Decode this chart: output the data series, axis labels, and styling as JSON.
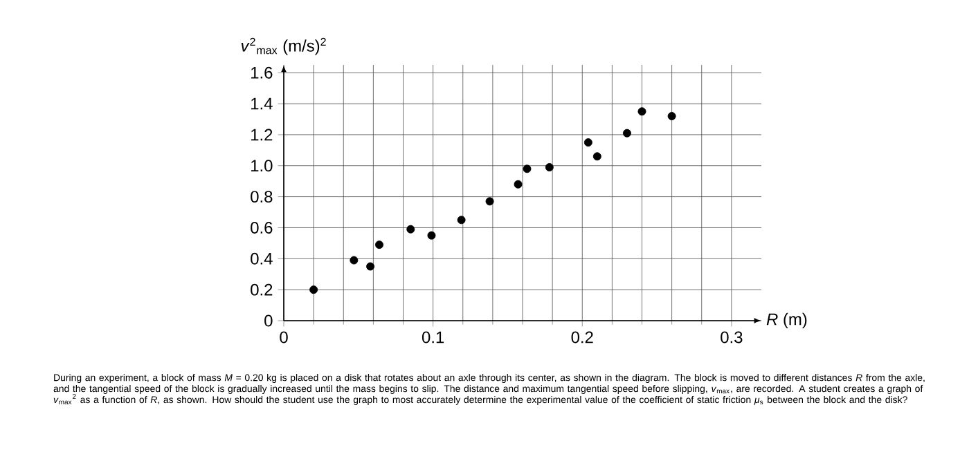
{
  "chart_data": {
    "type": "scatter",
    "xlabel": "*R* (m)",
    "ylabel": "*v*$^{2}$$_{max}$ (m/s)$^{2}$",
    "x": [
      0.02,
      0.047,
      0.058,
      0.064,
      0.085,
      0.099,
      0.119,
      0.138,
      0.157,
      0.163,
      0.178,
      0.204,
      0.21,
      0.23,
      0.24,
      0.26
    ],
    "values": [
      0.2,
      0.39,
      0.35,
      0.49,
      0.59,
      0.55,
      0.65,
      0.77,
      0.88,
      0.98,
      0.99,
      1.15,
      1.06,
      1.21,
      1.35,
      1.32
    ],
    "color": "#000000",
    "marker": "circle",
    "xlim": [
      0,
      0.32
    ],
    "ylim": [
      0,
      1.65
    ],
    "xticks": [
      0,
      0.1,
      0.2,
      0.3
    ],
    "yticks": [
      0,
      0.2,
      0.4,
      0.6,
      0.8,
      {
        "value": 1,
        "label": "1.0"
      },
      1.2,
      1.4,
      1.6
    ],
    "grid": true,
    "annotations": [
      "During an experiment, a block of mass *M* = 0.20 kg is placed on a disk that rotates about an axle through its center, as shown in the diagram. The block is moved to different distances *R* from the axle, and the tangential speed of the block is gradually increased until the mass begins to slip. The distance and maximum tangential speed before slipping, *v*$_{max}$, are recorded. A student creates a graph of *v*$_{max}$$^{2}$ as a function of *R*, as shown. How should the student use the graph to most accurately determine the experimental value of the coefficient of static friction *μ*$_{s}$ between the block and the disk?"
    ]
  }
}
